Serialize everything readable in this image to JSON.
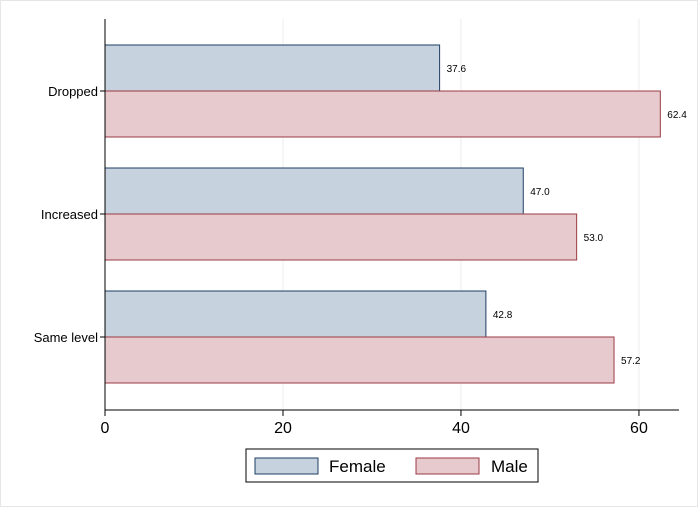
{
  "chart_data": {
    "type": "bar",
    "orientation": "horizontal",
    "categories": [
      "Dropped",
      "Increased",
      "Same level"
    ],
    "series": [
      {
        "name": "Female",
        "values": [
          37.6,
          47.0,
          42.8
        ],
        "labels": [
          "37.6",
          "47.0",
          "42.8"
        ],
        "color": "#c6d2de",
        "stroke": "#1f3f66"
      },
      {
        "name": "Male",
        "values": [
          62.4,
          53.0,
          57.2
        ],
        "labels": [
          "62.4",
          "53.0",
          "57.2"
        ],
        "color": "#e6cacd",
        "stroke": "#9b3b44"
      }
    ],
    "xlim": [
      0,
      64.5
    ],
    "xticks": [
      0,
      20,
      40,
      60
    ],
    "xtick_labels": [
      "0",
      "20",
      "40",
      "60"
    ],
    "grid": true,
    "legend_position": "bottom"
  }
}
